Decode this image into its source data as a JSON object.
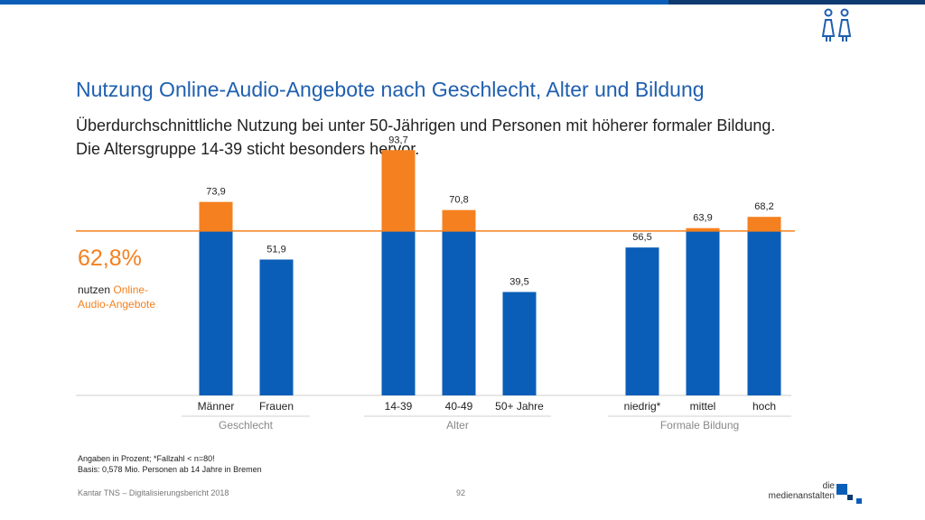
{
  "header": {
    "title": "Nutzung Online-Audio-Angebote nach Geschlecht, Alter und Bildung",
    "subtitle": "Überdurchschnittliche Nutzung bei unter 50-Jährigen und Personen mit höherer formaler Bildung. Die Altersgruppe 14-39 sticht besonders hervor.",
    "icon": "people-icon"
  },
  "average": {
    "value": "62,8%",
    "label_prefix": "nutzen ",
    "label_highlight": "Online-Audio-Angebote"
  },
  "chart_data": {
    "type": "bar",
    "average": 62.8,
    "ylim": [
      0,
      100
    ],
    "groups": [
      {
        "name": "Geschlecht",
        "categories": [
          "Männer",
          "Frauen"
        ],
        "values": [
          73.9,
          51.9
        ],
        "labels": [
          "73,9",
          "51,9"
        ]
      },
      {
        "name": "Alter",
        "categories": [
          "14-39",
          "40-49",
          "50+ Jahre"
        ],
        "values": [
          93.7,
          70.8,
          39.5
        ],
        "labels": [
          "93,7",
          "70,8",
          "39,5"
        ]
      },
      {
        "name": "Formale Bildung",
        "categories": [
          "niedrig*",
          "mittel",
          "hoch"
        ],
        "values": [
          56.5,
          63.9,
          68.2
        ],
        "labels": [
          "56,5",
          "63,9",
          "68,2"
        ]
      }
    ],
    "colors": {
      "base": "#0a5eb8",
      "above_average": "#f5801f",
      "average_line": "#f5801f"
    }
  },
  "footnotes": [
    "Angaben in Prozent; *Fallzahl < n=80!",
    "Basis: 0,578 Mio. Personen ab 14 Jahre in Bremen"
  ],
  "footer": {
    "source": "Kantar TNS – Digitalisierungsbericht 2018",
    "page": "92"
  },
  "logo": {
    "line1": "die",
    "line2": "medienanstalten"
  }
}
